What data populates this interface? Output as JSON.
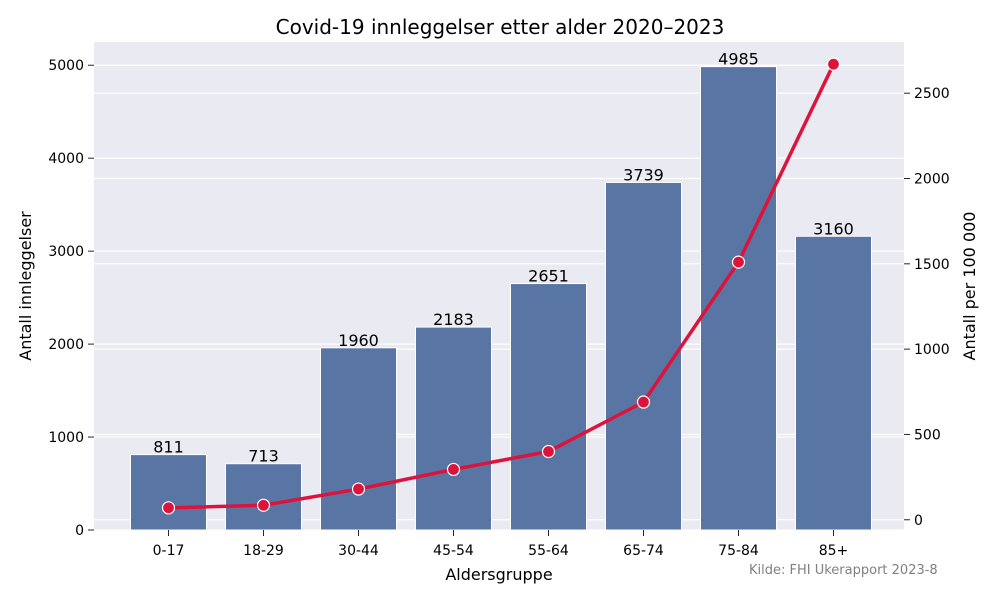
{
  "chart_data": {
    "type": "bar",
    "title": "Covid-19 innleggelser etter alder 2020–2023",
    "xlabel": "Aldersgruppe",
    "ylabel": "Antall innleggelser",
    "y2label": "Antall per 100 000",
    "categories": [
      "0-17",
      "18-29",
      "30-44",
      "45-54",
      "55-64",
      "65-74",
      "75-84",
      "85+"
    ],
    "series": [
      {
        "type": "bar",
        "axis": "left",
        "values": [
          811,
          713,
          1960,
          2183,
          2651,
          3739,
          4985,
          3160
        ],
        "color": "#5975a4"
      },
      {
        "type": "line",
        "axis": "right",
        "values": [
          70,
          85,
          180,
          295,
          400,
          690,
          1510,
          2670
        ],
        "color": "#dc143c"
      }
    ],
    "ylim": [
      0,
      5250
    ],
    "y2lim": [
      -60,
      2800
    ],
    "yticks": [
      0,
      1000,
      2000,
      3000,
      4000,
      5000
    ],
    "y2ticks": [
      0,
      500,
      1000,
      1500,
      2000,
      2500
    ],
    "grid": true,
    "background": "#eaeaf2"
  },
  "source": "Kilde: FHI Ukerapport 2023-8"
}
